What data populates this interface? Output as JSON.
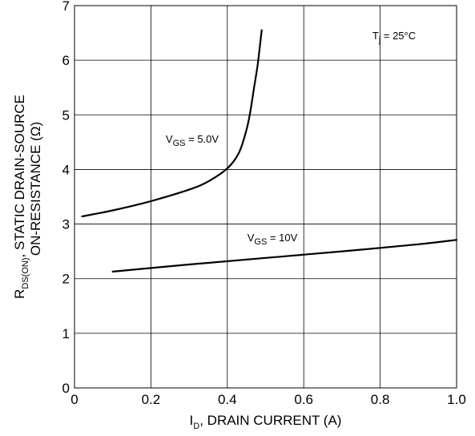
{
  "chart_data": {
    "type": "line",
    "xlabel": {
      "main": "I",
      "sub": "D",
      "rest": ", DRAIN CURRENT (A)"
    },
    "ylabel": {
      "line1_main": "R",
      "line1_sub": "DS(ON)",
      "line1_rest": ", STATIC DRAIN-SOURCE",
      "line2": "ON-RESISTANCE (Ω)"
    },
    "xlim": [
      0,
      1.0
    ],
    "ylim": [
      0,
      7
    ],
    "xticks": [
      0,
      0.2,
      0.4,
      0.6,
      0.8,
      1.0
    ],
    "xtick_labels": [
      "0",
      "0.2",
      "0.4",
      "0.6",
      "0.8",
      "1.0"
    ],
    "yticks": [
      0,
      1,
      2,
      3,
      4,
      5,
      6,
      7
    ],
    "ytick_labels": [
      "0",
      "1",
      "2",
      "3",
      "4",
      "5",
      "6",
      "7"
    ],
    "grid": true,
    "condition": {
      "main": "T",
      "sub": "j",
      "rest": " = 25°C"
    },
    "series": [
      {
        "name": "VGS = 5.0V",
        "label_main": "V",
        "label_sub": "GS",
        "label_rest": " = 5.0V",
        "x": [
          0.02,
          0.1,
          0.2,
          0.3,
          0.35,
          0.4,
          0.43,
          0.45,
          0.46,
          0.47,
          0.48,
          0.49
        ],
        "y": [
          3.14,
          3.25,
          3.42,
          3.63,
          3.78,
          4.02,
          4.3,
          4.72,
          5.05,
          5.5,
          5.95,
          6.55
        ]
      },
      {
        "name": "VGS = 10V",
        "label_main": "V",
        "label_sub": "GS",
        "label_rest": " = 10V",
        "x": [
          0.1,
          0.3,
          0.5,
          0.7,
          0.9,
          1.0
        ],
        "y": [
          2.13,
          2.26,
          2.38,
          2.5,
          2.63,
          2.71
        ]
      }
    ]
  }
}
